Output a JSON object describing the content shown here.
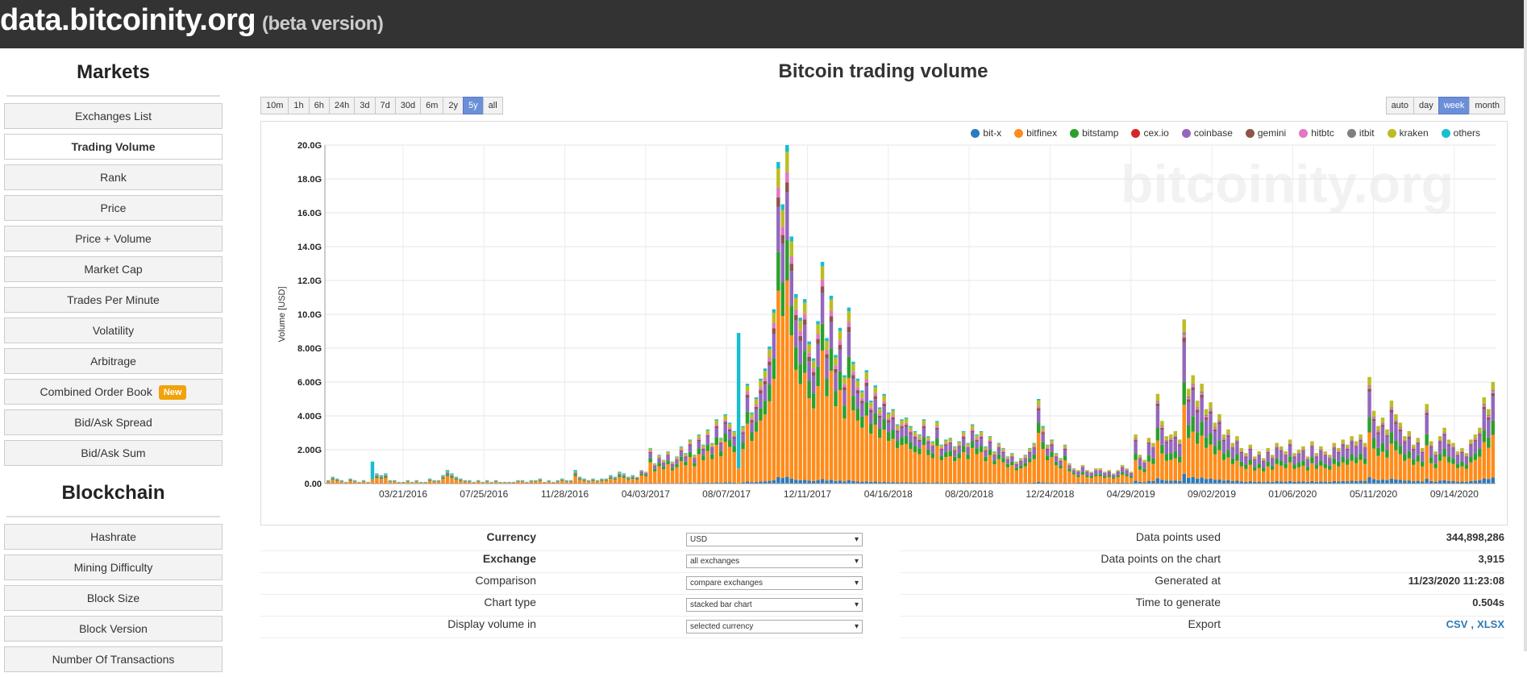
{
  "header": {
    "site": "data.bitcoinity.org",
    "beta": "(beta version)"
  },
  "sidebar": {
    "markets_heading": "Markets",
    "markets": [
      {
        "label": "Exchanges List",
        "name": "sidebar-item-exchanges-list"
      },
      {
        "label": "Trading Volume",
        "name": "sidebar-item-trading-volume",
        "active": true
      },
      {
        "label": "Rank",
        "name": "sidebar-item-rank"
      },
      {
        "label": "Price",
        "name": "sidebar-item-price"
      },
      {
        "label": "Price + Volume",
        "name": "sidebar-item-price-volume"
      },
      {
        "label": "Market Cap",
        "name": "sidebar-item-market-cap"
      },
      {
        "label": "Trades Per Minute",
        "name": "sidebar-item-trades-per-minute"
      },
      {
        "label": "Volatility",
        "name": "sidebar-item-volatility"
      },
      {
        "label": "Arbitrage",
        "name": "sidebar-item-arbitrage"
      },
      {
        "label": "Combined Order Book",
        "name": "sidebar-item-combined-order-book",
        "badge": "New"
      },
      {
        "label": "Bid/Ask Spread",
        "name": "sidebar-item-bid-ask-spread"
      },
      {
        "label": "Bid/Ask Sum",
        "name": "sidebar-item-bid-ask-sum"
      }
    ],
    "blockchain_heading": "Blockchain",
    "blockchain": [
      {
        "label": "Hashrate",
        "name": "sidebar-item-hashrate"
      },
      {
        "label": "Mining Difficulty",
        "name": "sidebar-item-mining-difficulty"
      },
      {
        "label": "Block Size",
        "name": "sidebar-item-block-size"
      },
      {
        "label": "Block Version",
        "name": "sidebar-item-block-version"
      },
      {
        "label": "Number Of Transactions",
        "name": "sidebar-item-number-of-transactions"
      }
    ]
  },
  "chart_title": "Bitcoin trading volume",
  "timespan_buttons": [
    "10m",
    "1h",
    "6h",
    "24h",
    "3d",
    "7d",
    "30d",
    "6m",
    "2y",
    "5y",
    "all"
  ],
  "timespan_selected": "5y",
  "resolution_buttons": [
    "auto",
    "day",
    "week",
    "month"
  ],
  "resolution_selected": "week",
  "watermark": "bitcoinity.org",
  "chart_data": {
    "type": "bar",
    "stacked": true,
    "ylabel": "Volume [USD]",
    "xlabel": "",
    "ylim": [
      0,
      20
    ],
    "yunit": "G",
    "y_ticks": [
      "0.00",
      "2.00G",
      "4.00G",
      "6.00G",
      "8.00G",
      "10.0G",
      "12.0G",
      "14.0G",
      "16.0G",
      "18.0G",
      "20.0G"
    ],
    "x_ticks": [
      "03/21/2016",
      "07/25/2016",
      "11/28/2016",
      "04/03/2017",
      "08/07/2017",
      "12/11/2017",
      "04/16/2018",
      "08/20/2018",
      "12/24/2018",
      "04/29/2019",
      "09/02/2019",
      "01/06/2020",
      "05/11/2020",
      "09/14/2020"
    ],
    "legend_position": "top-right",
    "grid": true,
    "series": [
      {
        "name": "bit-x",
        "color": "#2b7bc0"
      },
      {
        "name": "bitfinex",
        "color": "#ff8c1a"
      },
      {
        "name": "bitstamp",
        "color": "#2ca02c"
      },
      {
        "name": "cex.io",
        "color": "#d62728"
      },
      {
        "name": "coinbase",
        "color": "#9467bd"
      },
      {
        "name": "gemini",
        "color": "#8c564b"
      },
      {
        "name": "hitbtc",
        "color": "#e377c2"
      },
      {
        "name": "itbit",
        "color": "#7f7f7f"
      },
      {
        "name": "kraken",
        "color": "#bcbd22"
      },
      {
        "name": "others",
        "color": "#17becf"
      }
    ],
    "weekly_totals": [
      0.2,
      0.4,
      0.3,
      0.2,
      0.1,
      0.3,
      0.2,
      0.1,
      0.2,
      0.1,
      1.3,
      0.6,
      0.5,
      0.6,
      0.2,
      0.2,
      0.1,
      0.1,
      0.2,
      0.1,
      0.2,
      0.1,
      0.1,
      0.3,
      0.2,
      0.2,
      0.5,
      0.8,
      0.6,
      0.4,
      0.3,
      0.2,
      0.2,
      0.1,
      0.2,
      0.1,
      0.2,
      0.1,
      0.2,
      0.1,
      0.1,
      0.1,
      0.1,
      0.2,
      0.2,
      0.1,
      0.2,
      0.2,
      0.3,
      0.1,
      0.2,
      0.1,
      0.2,
      0.3,
      0.2,
      0.2,
      0.8,
      0.4,
      0.3,
      0.2,
      0.3,
      0.2,
      0.3,
      0.3,
      0.5,
      0.4,
      0.7,
      0.6,
      0.4,
      0.5,
      0.4,
      0.8,
      0.7,
      2.1,
      1.2,
      1.7,
      1.4,
      1.9,
      1.3,
      1.6,
      2.2,
      1.8,
      2.6,
      1.7,
      2.9,
      2.3,
      3.2,
      2.4,
      3.8,
      2.7,
      4.1,
      3.6,
      3.1,
      8.9,
      3.4,
      5.9,
      4.2,
      5.1,
      6.2,
      6.8,
      8.1,
      10.3,
      19.0,
      16.5,
      20.0,
      14.6,
      11.2,
      9.8,
      10.9,
      8.4,
      7.4,
      9.6,
      13.1,
      8.6,
      11.1,
      7.6,
      9.2,
      6.4,
      10.4,
      7.2,
      6.2,
      5.5,
      6.7,
      4.9,
      5.8,
      4.5,
      5.3,
      4.2,
      4.4,
      3.5,
      3.8,
      3.9,
      3.4,
      3.1,
      2.9,
      3.8,
      2.8,
      2.5,
      3.7,
      2.3,
      2.6,
      2.7,
      2.2,
      2.5,
      3.1,
      2.4,
      3.5,
      2.9,
      3.1,
      2.2,
      2.8,
      1.9,
      2.4,
      2.1,
      1.6,
      1.8,
      1.3,
      1.5,
      1.7,
      2.1,
      2.4,
      5.0,
      3.4,
      2.3,
      2.6,
      1.8,
      1.5,
      2.3,
      1.2,
      0.9,
      0.8,
      1.1,
      0.8,
      0.7,
      0.9,
      0.9,
      0.7,
      0.8,
      0.6,
      0.8,
      1.1,
      0.9,
      0.7,
      2.9,
      1.7,
      1.4,
      2.7,
      2.4,
      5.3,
      3.7,
      2.8,
      2.9,
      3.1,
      2.6,
      9.7,
      5.6,
      6.4,
      4.9,
      5.9,
      4.4,
      4.8,
      3.6,
      4.1,
      2.9,
      3.2,
      2.4,
      2.8,
      2.1,
      1.8,
      2.3,
      1.6,
      1.9,
      1.5,
      2.1,
      1.7,
      2.4,
      2.2,
      1.9,
      2.6,
      1.8,
      2.0,
      2.2,
      1.6,
      2.5,
      1.8,
      2.2,
      1.9,
      1.7,
      2.4,
      2.1,
      2.6,
      2.3,
      2.8,
      2.5,
      2.9,
      2.4,
      6.3,
      4.3,
      3.4,
      3.9,
      3.2,
      4.9,
      4.1,
      3.6,
      2.8,
      3.1,
      2.3,
      2.7,
      2.1,
      4.7,
      2.5,
      1.9,
      2.8,
      3.3,
      2.6,
      2.4,
      1.9,
      2.1,
      1.8,
      2.6,
      2.9,
      3.3,
      5.1,
      4.4,
      6.0
    ]
  },
  "settings": {
    "left": [
      {
        "label": "Currency",
        "bold": true,
        "value": "USD",
        "name": "currency"
      },
      {
        "label": "Exchange",
        "bold": true,
        "value": "all exchanges",
        "name": "exchange"
      },
      {
        "label": "Comparison",
        "bold": false,
        "value": "compare exchanges",
        "name": "comparison"
      },
      {
        "label": "Chart type",
        "bold": false,
        "value": "stacked bar chart",
        "name": "chart-type"
      },
      {
        "label": "Display volume in",
        "bold": false,
        "value": "selected currency",
        "name": "display-volume"
      }
    ],
    "right": [
      {
        "label": "Data points used",
        "value": "344,898,286"
      },
      {
        "label": "Data points on the chart",
        "value": "3,915"
      },
      {
        "label": "Generated at",
        "value": "11/23/2020 11:23:08"
      },
      {
        "label": "Time to generate",
        "value": "0.504s"
      }
    ],
    "export_label": "Export",
    "export_csv": "CSV",
    "export_sep": ",",
    "export_xlsx": "XLSX"
  }
}
